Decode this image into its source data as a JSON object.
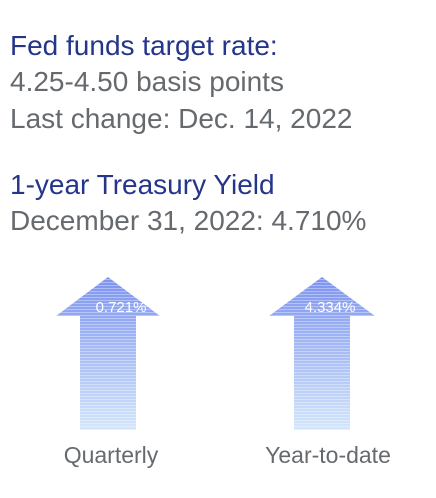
{
  "header": {
    "title": "Fed funds target rate:",
    "range": "4.25-4.50 basis points",
    "last_change": "Last change: Dec. 14, 2022"
  },
  "treasury": {
    "title": "1-year Treasury Yield",
    "yield": "December 31, 2022: 4.710%"
  },
  "arrows": [
    {
      "label": "0.721%",
      "caption": "Quarterly"
    },
    {
      "label": "4.334%",
      "caption": "Year-to-date"
    }
  ]
}
